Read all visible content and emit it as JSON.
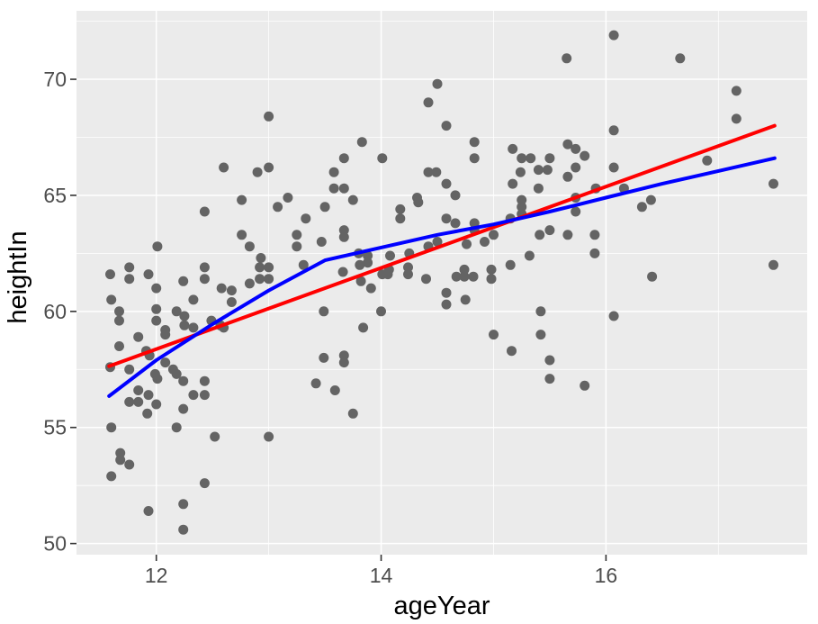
{
  "figure": {
    "background": "#FFFFFF",
    "panel_background": "#EBEBEB",
    "grid_color": "#FFFFFF",
    "tick_mark_color": "#333333",
    "tick_label_color": "#4D4D4D",
    "axis_title_color": "#000000"
  },
  "chart_data": {
    "type": "scatter",
    "title": "",
    "xlabel": "ageYear",
    "ylabel": "heightIn",
    "xlim": [
      11.29,
      17.79
    ],
    "ylim": [
      49.52,
      72.95
    ],
    "x_major_ticks": [
      12,
      14,
      16
    ],
    "x_minor_gridlines": [
      13,
      15,
      17
    ],
    "y_major_ticks": [
      50,
      55,
      60,
      65,
      70
    ],
    "y_minor_gridlines": [
      52.5,
      57.5,
      62.5,
      67.5,
      72.5
    ],
    "grid": true,
    "legend_position": "none",
    "point_color": "#646464",
    "point_radius": 5.5,
    "points": [
      [
        13.0,
        68.4
      ],
      [
        12.6,
        66.2
      ],
      [
        12.9,
        66.0
      ],
      [
        13.0,
        66.2
      ],
      [
        13.17,
        64.9
      ],
      [
        12.76,
        64.8
      ],
      [
        13.08,
        64.5
      ],
      [
        12.43,
        64.3
      ],
      [
        13.33,
        64.0
      ],
      [
        13.25,
        63.3
      ],
      [
        12.76,
        63.3
      ],
      [
        12.83,
        62.8
      ],
      [
        13.25,
        62.8
      ],
      [
        12.01,
        62.8
      ],
      [
        12.93,
        62.3
      ],
      [
        13.31,
        62.0
      ],
      [
        11.76,
        61.9
      ],
      [
        12.43,
        61.9
      ],
      [
        12.92,
        61.9
      ],
      [
        13.0,
        61.9
      ],
      [
        11.59,
        61.6
      ],
      [
        11.93,
        61.6
      ],
      [
        11.76,
        61.4
      ],
      [
        12.43,
        61.4
      ],
      [
        12.92,
        61.4
      ],
      [
        13.0,
        61.4
      ],
      [
        12.24,
        61.3
      ],
      [
        12.0,
        61.0
      ],
      [
        12.58,
        61.0
      ],
      [
        12.67,
        60.9
      ],
      [
        12.83,
        61.2
      ],
      [
        11.6,
        60.5
      ],
      [
        12.33,
        60.5
      ],
      [
        12.67,
        60.4
      ],
      [
        11.67,
        60.0
      ],
      [
        12.0,
        60.1
      ],
      [
        12.18,
        60.0
      ],
      [
        12.25,
        59.8
      ],
      [
        12.0,
        59.6
      ],
      [
        12.25,
        59.4
      ],
      [
        11.67,
        59.6
      ],
      [
        12.49,
        59.6
      ],
      [
        12.57,
        59.4
      ],
      [
        12.08,
        59.2
      ],
      [
        12.08,
        59.0
      ],
      [
        11.84,
        58.9
      ],
      [
        12.33,
        59.3
      ],
      [
        12.6,
        59.3
      ],
      [
        11.67,
        58.5
      ],
      [
        11.91,
        58.3
      ],
      [
        11.94,
        58.1
      ],
      [
        12.08,
        57.8
      ],
      [
        11.59,
        57.6
      ],
      [
        11.76,
        57.5
      ],
      [
        11.99,
        57.3
      ],
      [
        12.01,
        57.1
      ],
      [
        12.15,
        57.5
      ],
      [
        12.18,
        57.3
      ],
      [
        12.24,
        57.0
      ],
      [
        12.43,
        57.0
      ],
      [
        12.33,
        56.4
      ],
      [
        12.43,
        56.4
      ],
      [
        11.84,
        56.6
      ],
      [
        11.93,
        56.4
      ],
      [
        11.76,
        56.1
      ],
      [
        11.84,
        56.1
      ],
      [
        12.0,
        56.0
      ],
      [
        11.92,
        55.6
      ],
      [
        12.24,
        55.8
      ],
      [
        11.6,
        55.0
      ],
      [
        12.18,
        55.0
      ],
      [
        12.52,
        54.6
      ],
      [
        13.0,
        54.6
      ],
      [
        11.68,
        53.9
      ],
      [
        11.68,
        53.6
      ],
      [
        11.76,
        53.4
      ],
      [
        11.6,
        52.9
      ],
      [
        12.43,
        52.6
      ],
      [
        12.24,
        51.7
      ],
      [
        11.93,
        51.4
      ],
      [
        12.24,
        50.6
      ],
      [
        14.5,
        69.8
      ],
      [
        14.42,
        69.0
      ],
      [
        14.58,
        68.0
      ],
      [
        14.83,
        67.3
      ],
      [
        13.83,
        67.3
      ],
      [
        15.17,
        67.0
      ],
      [
        13.67,
        66.6
      ],
      [
        14.01,
        66.6
      ],
      [
        14.83,
        66.6
      ],
      [
        15.25,
        66.6
      ],
      [
        15.33,
        66.6
      ],
      [
        15.5,
        66.6
      ],
      [
        13.58,
        66.0
      ],
      [
        14.42,
        66.0
      ],
      [
        14.49,
        66.0
      ],
      [
        15.24,
        66.0
      ],
      [
        15.4,
        66.1
      ],
      [
        15.48,
        66.1
      ],
      [
        13.58,
        65.3
      ],
      [
        13.67,
        65.3
      ],
      [
        14.58,
        65.5
      ],
      [
        15.17,
        65.5
      ],
      [
        15.4,
        65.3
      ],
      [
        13.75,
        64.8
      ],
      [
        14.32,
        64.9
      ],
      [
        14.33,
        64.7
      ],
      [
        14.66,
        65.0
      ],
      [
        13.5,
        64.5
      ],
      [
        15.25,
        64.8
      ],
      [
        15.25,
        64.5
      ],
      [
        15.25,
        64.2
      ],
      [
        14.17,
        64.4
      ],
      [
        14.17,
        64.0
      ],
      [
        14.58,
        64.0
      ],
      [
        14.66,
        63.8
      ],
      [
        14.83,
        63.8
      ],
      [
        14.83,
        63.5
      ],
      [
        15.15,
        64.0
      ],
      [
        13.67,
        63.5
      ],
      [
        13.67,
        63.2
      ],
      [
        15.41,
        63.3
      ],
      [
        15.5,
        63.5
      ],
      [
        15.0,
        63.3
      ],
      [
        14.92,
        63.0
      ],
      [
        13.47,
        63.0
      ],
      [
        14.76,
        62.9
      ],
      [
        14.5,
        63.0
      ],
      [
        14.42,
        62.8
      ],
      [
        13.8,
        62.5
      ],
      [
        13.88,
        62.4
      ],
      [
        13.88,
        62.1
      ],
      [
        13.81,
        62.0
      ],
      [
        14.25,
        62.5
      ],
      [
        14.24,
        61.9
      ],
      [
        14.24,
        61.6
      ],
      [
        14.08,
        62.4
      ],
      [
        14.07,
        61.8
      ],
      [
        13.66,
        61.7
      ],
      [
        13.82,
        61.3
      ],
      [
        14.01,
        61.6
      ],
      [
        14.06,
        61.6
      ],
      [
        14.4,
        61.4
      ],
      [
        14.67,
        61.5
      ],
      [
        14.74,
        61.8
      ],
      [
        14.82,
        61.5
      ],
      [
        14.74,
        61.5
      ],
      [
        14.98,
        61.8
      ],
      [
        14.98,
        61.4
      ],
      [
        15.15,
        62.0
      ],
      [
        15.32,
        62.4
      ],
      [
        13.91,
        61.0
      ],
      [
        14.58,
        60.8
      ],
      [
        14.75,
        60.5
      ],
      [
        14.58,
        60.3
      ],
      [
        13.49,
        60.0
      ],
      [
        14.0,
        60.0
      ],
      [
        15.42,
        60.0
      ],
      [
        13.84,
        59.3
      ],
      [
        15.0,
        59.0
      ],
      [
        15.42,
        59.0
      ],
      [
        15.16,
        58.3
      ],
      [
        13.49,
        58.0
      ],
      [
        13.67,
        58.1
      ],
      [
        13.67,
        57.8
      ],
      [
        15.5,
        57.9
      ],
      [
        15.5,
        57.1
      ],
      [
        13.59,
        56.6
      ],
      [
        13.42,
        56.9
      ],
      [
        13.75,
        55.6
      ],
      [
        16.07,
        71.9
      ],
      [
        15.65,
        70.9
      ],
      [
        16.66,
        70.9
      ],
      [
        17.16,
        69.5
      ],
      [
        17.16,
        68.3
      ],
      [
        16.07,
        67.8
      ],
      [
        15.66,
        67.2
      ],
      [
        15.73,
        67.0
      ],
      [
        15.81,
        66.7
      ],
      [
        15.73,
        66.2
      ],
      [
        15.66,
        65.8
      ],
      [
        16.07,
        66.2
      ],
      [
        16.16,
        65.3
      ],
      [
        16.9,
        66.5
      ],
      [
        15.91,
        65.3
      ],
      [
        15.73,
        64.9
      ],
      [
        17.49,
        65.5
      ],
      [
        16.32,
        64.5
      ],
      [
        16.4,
        64.8
      ],
      [
        15.73,
        64.3
      ],
      [
        15.66,
        63.3
      ],
      [
        15.9,
        63.3
      ],
      [
        15.9,
        62.5
      ],
      [
        17.49,
        62.0
      ],
      [
        16.41,
        61.5
      ],
      [
        16.07,
        59.8
      ],
      [
        15.81,
        56.8
      ]
    ],
    "series": [
      {
        "name": "linear-fit",
        "type": "line",
        "color": "#FF0000",
        "x": [
          11.58,
          17.5
        ],
        "y": [
          57.64,
          68.0
        ]
      },
      {
        "name": "loess-smooth",
        "type": "line",
        "color": "#0000FF",
        "points": [
          [
            11.58,
            56.35
          ],
          [
            12.0,
            57.9
          ],
          [
            12.5,
            59.45
          ],
          [
            13.0,
            60.9
          ],
          [
            13.5,
            62.2
          ],
          [
            14.0,
            62.75
          ],
          [
            14.5,
            63.3
          ],
          [
            15.0,
            63.75
          ],
          [
            15.5,
            64.3
          ],
          [
            16.0,
            64.9
          ],
          [
            16.5,
            65.5
          ],
          [
            17.0,
            66.05
          ],
          [
            17.5,
            66.6
          ]
        ]
      }
    ]
  }
}
